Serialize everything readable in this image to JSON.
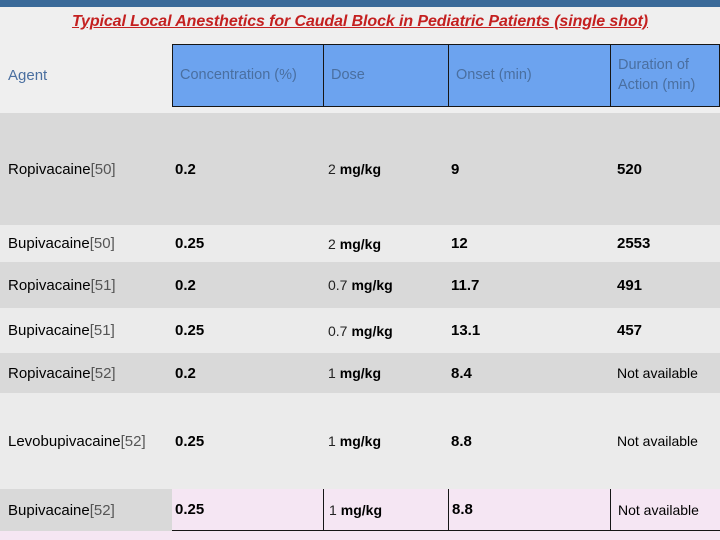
{
  "slide": {
    "title": "Typical Local Anesthetics for Caudal Block in Pediatric Patients (single shot)"
  },
  "table": {
    "columns": [
      "Agent",
      "Concentration (%)",
      "Dose",
      "Onset (min)",
      "Duration of Action (min)"
    ],
    "rows": [
      {
        "agent": "Ropivacaine",
        "ref": "[50]",
        "concentration": "0.2",
        "dose_value": "2",
        "dose_unit": "mg/kg",
        "onset": "9",
        "duration": "520"
      },
      {
        "agent": "Bupivacaine",
        "ref": "[50]",
        "concentration": "0.25",
        "dose_value": "2",
        "dose_unit": "mg/kg",
        "onset": "12",
        "duration": "2553"
      },
      {
        "agent": "Ropivacaine",
        "ref": "[51]",
        "concentration": "0.2",
        "dose_value": "0.7",
        "dose_unit": "mg/kg",
        "onset": "11.7",
        "duration": "491"
      },
      {
        "agent": "Bupivacaine",
        "ref": "[51]",
        "concentration": "0.25",
        "dose_value": "0.7",
        "dose_unit": "mg/kg",
        "onset": "13.1",
        "duration": "457"
      },
      {
        "agent": "Ropivacaine",
        "ref": "[52]",
        "concentration": "0.2",
        "dose_value": "1",
        "dose_unit": "mg/kg",
        "onset": "8.4",
        "duration": "Not available"
      },
      {
        "agent": "Levobupivacaine",
        "ref": "[52]",
        "concentration": "0.25",
        "dose_value": "1",
        "dose_unit": "mg/kg",
        "onset": "8.8",
        "duration": "Not available"
      },
      {
        "agent": "Bupivacaine",
        "ref": "[52]",
        "concentration": "0.25",
        "dose_value": "1",
        "dose_unit": "mg/kg",
        "onset": "8.8",
        "duration": "Not available"
      }
    ],
    "not_available_label": "Not available"
  },
  "colors": {
    "accent_bar": "#3a6a99",
    "title_red": "#c42020",
    "header_fill": "#6ca3ef",
    "header_text": "#4a6fa0",
    "row_gray": "#d9d9d9",
    "row_light": "#ebebeb",
    "highlight_pink": "#f5e6f3",
    "page_bg": "#efefef"
  }
}
